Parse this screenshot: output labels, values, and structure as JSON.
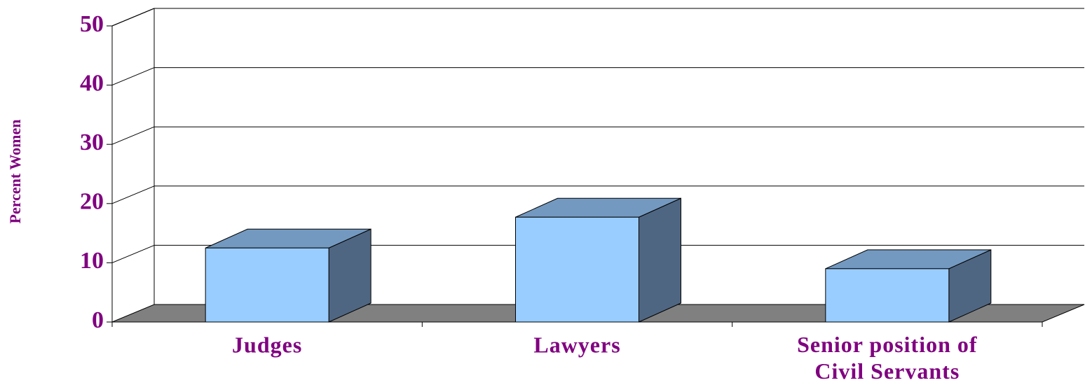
{
  "chart_data": {
    "type": "bar3d",
    "ylabel": "Percent Women",
    "categories": [
      "Judges",
      "Lawyers",
      "Senior position of Civil Servants"
    ],
    "values": [
      12.5,
      17.7,
      9
    ],
    "color": "#99ccff",
    "ylim": [
      0,
      50
    ],
    "yticks": [
      0,
      10,
      20,
      30,
      40,
      50
    ],
    "grid": true
  }
}
